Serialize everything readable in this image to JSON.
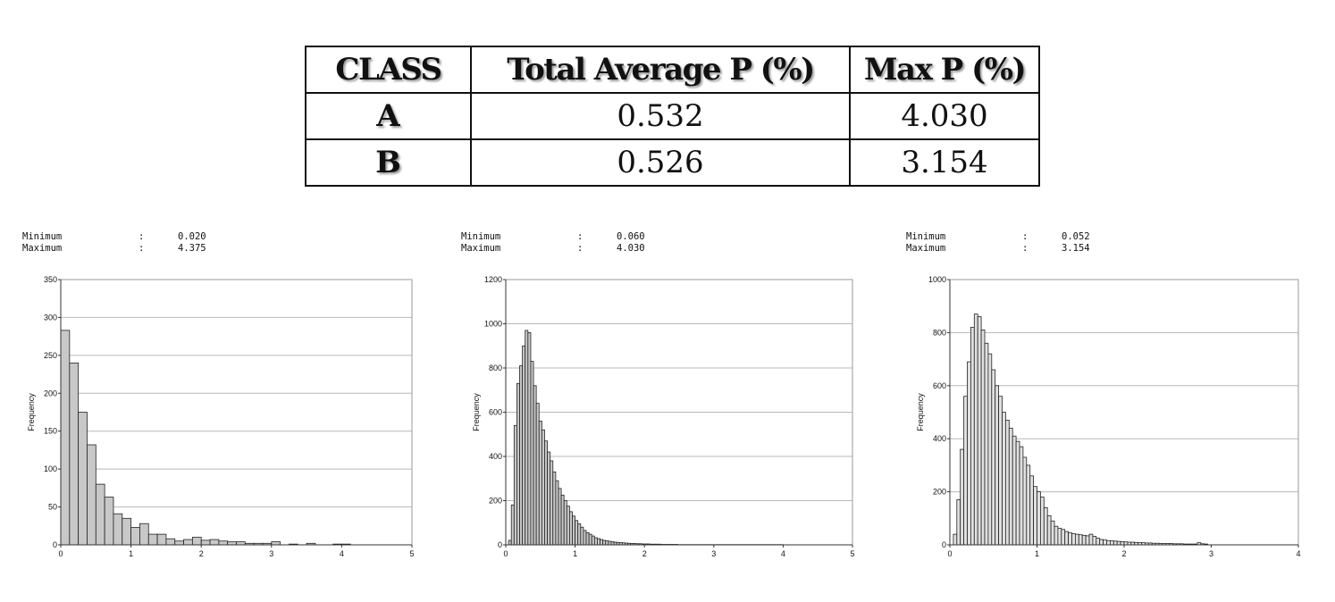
{
  "table": {
    "headers": [
      "CLASS",
      "Total Average P (%)",
      "Max P (%)"
    ],
    "rows": [
      {
        "class": "A",
        "avg": "0.532",
        "max": "4.030"
      },
      {
        "class": "B",
        "avg": "0.526",
        "max": "3.154"
      }
    ]
  },
  "chart_data": [
    {
      "type": "bar",
      "stats": {
        "min_label": "Minimum",
        "max_label": "Maximum",
        "sep": ":",
        "min": "0.020",
        "max": "4.375"
      },
      "ylabel": "Frequency",
      "xlim": [
        0,
        5
      ],
      "ylim": [
        0,
        350
      ],
      "xticks": [
        0,
        1,
        2,
        3,
        4,
        5
      ],
      "yticks": [
        0,
        50,
        100,
        150,
        200,
        250,
        300,
        350
      ],
      "bar_color": "#c8c8c8",
      "bin_width": 0.125,
      "x_start": 0,
      "values": [
        283,
        240,
        175,
        132,
        80,
        63,
        41,
        35,
        23,
        28,
        14,
        14,
        8,
        5,
        7,
        10,
        6,
        7,
        5,
        4,
        4,
        2,
        2,
        2,
        4,
        0,
        1,
        0,
        2,
        0,
        0,
        1,
        1,
        0,
        0
      ]
    },
    {
      "type": "bar",
      "stats": {
        "min_label": "Minimum",
        "max_label": "Maximum",
        "sep": ":",
        "min": "0.060",
        "max": "4.030"
      },
      "ylabel": "Frequency",
      "xlim": [
        0,
        5
      ],
      "ylim": [
        0,
        1200
      ],
      "xticks": [
        0,
        1,
        2,
        3,
        4,
        5
      ],
      "yticks": [
        0,
        200,
        400,
        600,
        800,
        1000,
        1200
      ],
      "bar_color": "#c8c8c8",
      "bin_width": 0.04,
      "x_start": 0.04,
      "values": [
        20,
        180,
        540,
        730,
        810,
        900,
        970,
        960,
        830,
        720,
        640,
        560,
        520,
        470,
        420,
        380,
        330,
        290,
        255,
        225,
        200,
        175,
        150,
        130,
        110,
        95,
        80,
        65,
        55,
        48,
        40,
        32,
        28,
        24,
        20,
        18,
        16,
        14,
        12,
        11,
        10,
        9,
        8,
        7,
        6,
        6,
        5,
        5,
        4,
        4,
        4,
        3,
        3,
        3,
        3,
        2,
        2,
        2,
        2,
        2,
        2,
        1,
        1,
        1,
        1,
        1,
        1,
        1,
        1,
        1,
        1,
        1,
        1,
        1,
        1,
        1,
        1,
        1,
        1,
        1,
        1,
        1,
        1,
        1,
        1,
        1,
        1,
        1,
        1,
        1,
        1,
        1,
        1,
        1,
        1,
        1,
        1,
        1,
        1
      ]
    },
    {
      "type": "bar",
      "stats": {
        "min_label": "Minimum",
        "max_label": "Maximum",
        "sep": ":",
        "min": "0.052",
        "max": "3.154"
      },
      "ylabel": "Frequency",
      "xlim": [
        0,
        4
      ],
      "ylim": [
        0,
        1000
      ],
      "xticks": [
        0,
        1,
        2,
        3,
        4
      ],
      "yticks": [
        0,
        200,
        400,
        600,
        800,
        1000
      ],
      "bar_color": "#e0e0e0",
      "bin_width": 0.04,
      "x_start": 0.04,
      "values": [
        40,
        170,
        360,
        560,
        690,
        820,
        870,
        860,
        810,
        760,
        720,
        660,
        600,
        560,
        500,
        470,
        440,
        410,
        390,
        370,
        330,
        300,
        260,
        220,
        200,
        180,
        140,
        110,
        90,
        70,
        62,
        58,
        50,
        45,
        42,
        40,
        38,
        36,
        34,
        40,
        32,
        25,
        20,
        18,
        16,
        15,
        14,
        13,
        12,
        11,
        10,
        10,
        9,
        8,
        8,
        7,
        7,
        6,
        6,
        5,
        5,
        5,
        5,
        4,
        4,
        4,
        3,
        3,
        3,
        3,
        8,
        4,
        3
      ]
    }
  ]
}
